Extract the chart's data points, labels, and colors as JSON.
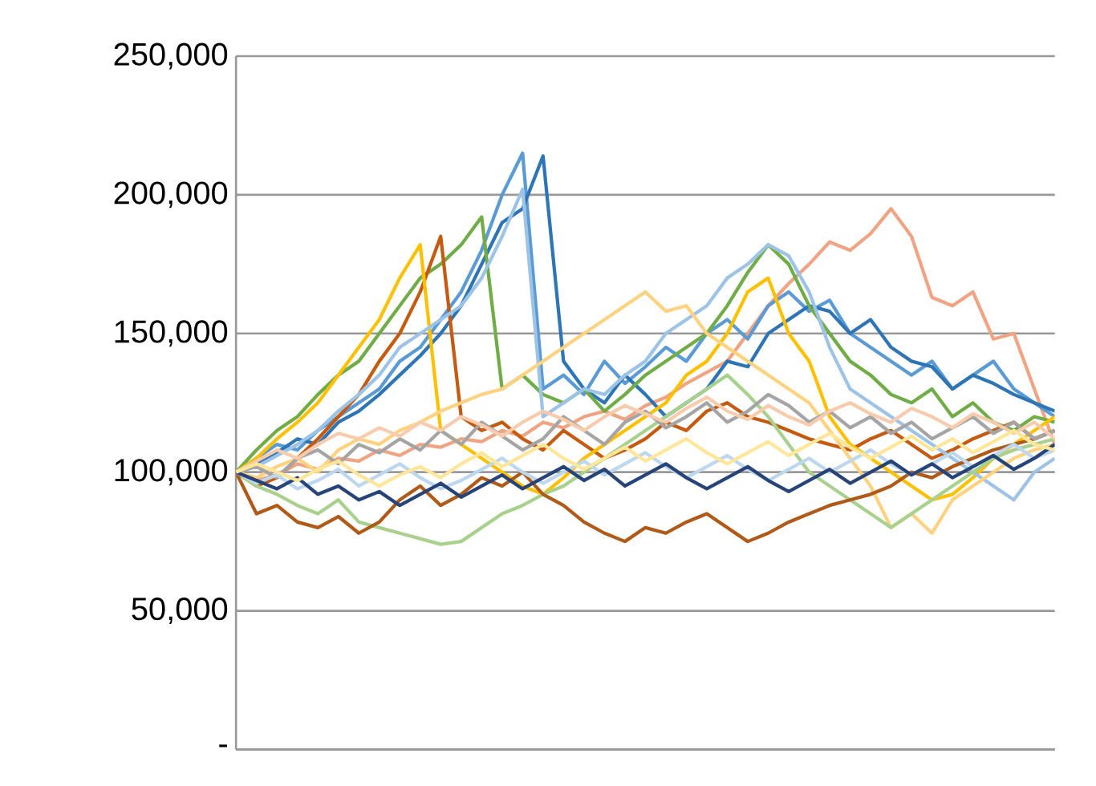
{
  "chart_data": {
    "type": "line",
    "categories": [
      null,
      null,
      null,
      null,
      null,
      null,
      null,
      null,
      null,
      null,
      null,
      null,
      null,
      null,
      null,
      null,
      null,
      null,
      null,
      null,
      null,
      null,
      null,
      null,
      null,
      null,
      null,
      null,
      null,
      null,
      null,
      null,
      null,
      null,
      null,
      null,
      null,
      null,
      null,
      null,
      null
    ],
    "ylim": [
      0,
      250000
    ],
    "yticks": [
      {
        "value": 0,
        "label": "-"
      },
      {
        "value": 50000,
        "label": "50,000"
      },
      {
        "value": 100000,
        "label": "100,000"
      },
      {
        "value": 150000,
        "label": "150,000"
      },
      {
        "value": 200000,
        "label": "200,000"
      },
      {
        "value": 250000,
        "label": "250,000"
      }
    ],
    "grid": "y",
    "tick_labels": "y",
    "line_style": "solid",
    "series": [
      {
        "color": "#f0a484",
        "values": [
          100000,
          97000,
          99000,
          103000,
          101000,
          105000,
          104000,
          108000,
          106000,
          110000,
          109000,
          112000,
          111000,
          115000,
          113000,
          118000,
          116000,
          120000,
          122000,
          119000,
          124000,
          127000,
          132000,
          136000,
          140000,
          150000,
          160000,
          168000,
          175000,
          183000,
          180000,
          186000,
          195000,
          185000,
          163000,
          160000,
          165000,
          148000,
          150000,
          130000,
          110000
        ]
      },
      {
        "color": "#5b9bd5",
        "values": [
          100000,
          105000,
          110000,
          108000,
          115000,
          120000,
          125000,
          130000,
          140000,
          145000,
          155000,
          165000,
          180000,
          200000,
          215000,
          130000,
          135000,
          128000,
          140000,
          132000,
          138000,
          145000,
          140000,
          150000,
          155000,
          148000,
          160000,
          165000,
          158000,
          162000,
          150000,
          145000,
          140000,
          135000,
          140000,
          130000,
          135000,
          140000,
          130000,
          125000,
          120000
        ]
      },
      {
        "color": "#2e75b6",
        "values": [
          100000,
          103000,
          107000,
          112000,
          110000,
          118000,
          122000,
          128000,
          135000,
          142000,
          150000,
          160000,
          175000,
          190000,
          195000,
          214000,
          140000,
          130000,
          125000,
          135000,
          128000,
          120000,
          125000,
          130000,
          140000,
          138000,
          150000,
          155000,
          160000,
          158000,
          150000,
          155000,
          145000,
          140000,
          138000,
          130000,
          135000,
          132000,
          128000,
          125000,
          122000
        ]
      },
      {
        "color": "#70ad47",
        "values": [
          100000,
          108000,
          115000,
          120000,
          128000,
          135000,
          140000,
          150000,
          160000,
          170000,
          175000,
          182000,
          192000,
          130000,
          135000,
          128000,
          125000,
          130000,
          122000,
          128000,
          135000,
          140000,
          145000,
          150000,
          160000,
          172000,
          182000,
          175000,
          160000,
          150000,
          140000,
          135000,
          128000,
          125000,
          130000,
          120000,
          125000,
          118000,
          115000,
          120000,
          118000
        ]
      },
      {
        "color": "#c55a11",
        "values": [
          100000,
          95000,
          98000,
          105000,
          112000,
          120000,
          128000,
          140000,
          150000,
          165000,
          185000,
          120000,
          115000,
          118000,
          112000,
          108000,
          115000,
          110000,
          105000,
          108000,
          112000,
          118000,
          115000,
          122000,
          125000,
          120000,
          118000,
          115000,
          112000,
          110000,
          108000,
          112000,
          115000,
          110000,
          105000,
          108000,
          112000,
          115000,
          118000,
          112000,
          115000
        ]
      },
      {
        "color": "#ffc000",
        "values": [
          100000,
          105000,
          112000,
          118000,
          125000,
          135000,
          145000,
          155000,
          170000,
          182000,
          115000,
          110000,
          105000,
          100000,
          95000,
          92000,
          98000,
          105000,
          110000,
          115000,
          120000,
          125000,
          135000,
          140000,
          150000,
          165000,
          170000,
          150000,
          140000,
          120000,
          110000,
          105000,
          100000,
          95000,
          90000,
          92000,
          98000,
          105000,
          110000,
          115000,
          120000
        ]
      },
      {
        "color": "#9dc3e6",
        "values": [
          100000,
          102000,
          106000,
          110000,
          115000,
          122000,
          128000,
          135000,
          145000,
          150000,
          155000,
          160000,
          170000,
          185000,
          202000,
          120000,
          125000,
          130000,
          128000,
          135000,
          140000,
          150000,
          155000,
          160000,
          170000,
          175000,
          182000,
          178000,
          165000,
          145000,
          130000,
          125000,
          120000,
          115000,
          110000,
          105000,
          100000,
          95000,
          90000,
          100000,
          105000
        ]
      },
      {
        "color": "#ffd27f",
        "values": [
          100000,
          98000,
          102000,
          105000,
          100000,
          108000,
          112000,
          110000,
          115000,
          118000,
          122000,
          125000,
          128000,
          130000,
          135000,
          140000,
          145000,
          150000,
          155000,
          160000,
          165000,
          158000,
          160000,
          150000,
          145000,
          140000,
          135000,
          130000,
          125000,
          115000,
          105000,
          95000,
          80000,
          85000,
          78000,
          90000,
          95000,
          100000,
          105000,
          108000,
          110000
        ]
      },
      {
        "color": "#a9d18e",
        "values": [
          100000,
          95000,
          92000,
          88000,
          85000,
          90000,
          82000,
          80000,
          78000,
          76000,
          74000,
          75000,
          80000,
          85000,
          88000,
          92000,
          95000,
          100000,
          105000,
          110000,
          115000,
          120000,
          125000,
          130000,
          135000,
          128000,
          120000,
          110000,
          100000,
          95000,
          90000,
          85000,
          80000,
          85000,
          90000,
          95000,
          100000,
          105000,
          108000,
          110000,
          112000
        ]
      },
      {
        "color": "#b05a1a",
        "values": [
          100000,
          85000,
          88000,
          82000,
          80000,
          84000,
          78000,
          82000,
          90000,
          95000,
          88000,
          92000,
          98000,
          95000,
          100000,
          92000,
          88000,
          82000,
          78000,
          75000,
          80000,
          78000,
          82000,
          85000,
          80000,
          75000,
          78000,
          82000,
          85000,
          88000,
          90000,
          92000,
          95000,
          100000,
          98000,
          102000,
          105000,
          108000,
          110000,
          112000,
          115000
        ]
      },
      {
        "color": "#a5a5a5",
        "values": [
          100000,
          102000,
          98000,
          105000,
          108000,
          103000,
          110000,
          107000,
          112000,
          108000,
          115000,
          110000,
          118000,
          113000,
          108000,
          112000,
          120000,
          115000,
          110000,
          118000,
          122000,
          116000,
          120000,
          125000,
          118000,
          122000,
          128000,
          124000,
          118000,
          122000,
          116000,
          120000,
          114000,
          118000,
          112000,
          116000,
          120000,
          114000,
          118000,
          112000,
          115000
        ]
      },
      {
        "color": "#f8cbad",
        "values": [
          100000,
          104000,
          108000,
          105000,
          110000,
          114000,
          112000,
          116000,
          113000,
          118000,
          115000,
          120000,
          117000,
          113000,
          118000,
          122000,
          119000,
          115000,
          120000,
          124000,
          121000,
          118000,
          123000,
          127000,
          122000,
          119000,
          124000,
          120000,
          117000,
          122000,
          125000,
          121000,
          118000,
          123000,
          120000,
          116000,
          121000,
          118000,
          114000,
          118000,
          112000
        ]
      },
      {
        "color": "#bdd7ee",
        "values": [
          100000,
          96000,
          99000,
          94000,
          97000,
          101000,
          95000,
          99000,
          103000,
          98000,
          94000,
          97000,
          101000,
          105000,
          100000,
          96000,
          100000,
          104000,
          99000,
          103000,
          107000,
          102000,
          98000,
          102000,
          106000,
          101000,
          97000,
          101000,
          105000,
          100000,
          104000,
          108000,
          103000,
          99000,
          103000,
          107000,
          102000,
          106000,
          110000,
          105000,
          108000
        ]
      },
      {
        "color": "#264478",
        "values": [
          100000,
          97000,
          94000,
          98000,
          92000,
          95000,
          90000,
          93000,
          88000,
          92000,
          96000,
          91000,
          95000,
          99000,
          94000,
          98000,
          102000,
          97000,
          101000,
          95000,
          99000,
          103000,
          98000,
          94000,
          98000,
          102000,
          97000,
          93000,
          97000,
          101000,
          96000,
          100000,
          104000,
          99000,
          103000,
          98000,
          102000,
          106000,
          101000,
          105000,
          110000
        ]
      },
      {
        "color": "#ffe699",
        "values": [
          100000,
          103000,
          100000,
          97000,
          101000,
          104000,
          99000,
          95000,
          99000,
          102000,
          98000,
          103000,
          107000,
          102000,
          106000,
          110000,
          105000,
          101000,
          105000,
          109000,
          104000,
          108000,
          112000,
          107000,
          103000,
          107000,
          111000,
          106000,
          110000,
          114000,
          109000,
          105000,
          109000,
          113000,
          108000,
          112000,
          107000,
          111000,
          115000,
          110000,
          108000
        ]
      }
    ]
  }
}
